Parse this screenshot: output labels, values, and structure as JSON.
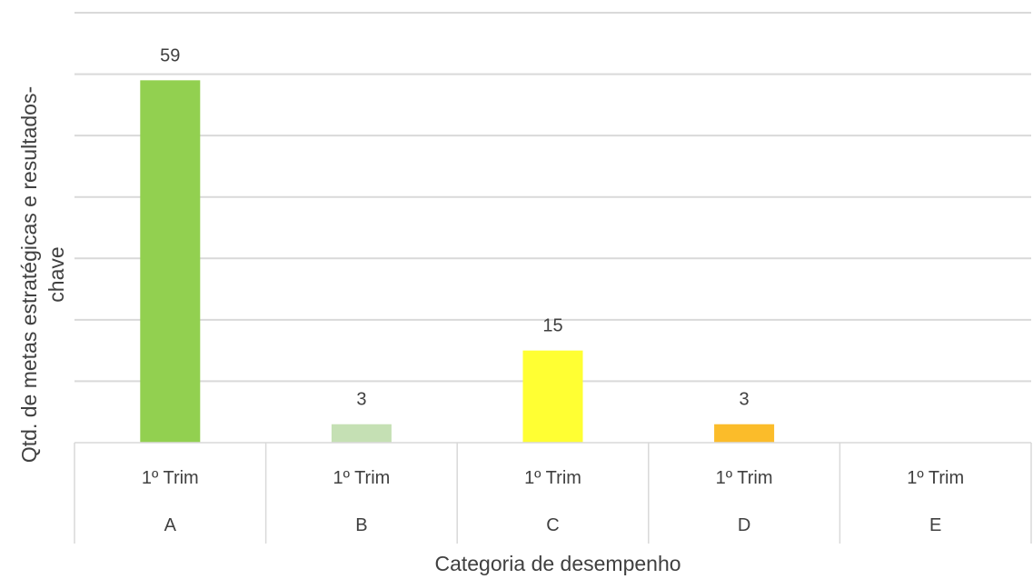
{
  "chart_data": {
    "type": "bar",
    "title": "",
    "xlabel": "Categoria de desempenho",
    "ylabel_lines": [
      "Qtd. de metas estratégicas  e resultados-",
      "chave"
    ],
    "ylim": [
      0,
      70
    ],
    "grid": true,
    "legend": "none",
    "categories": [
      {
        "group": "A",
        "label": "1º Trim",
        "value": 59,
        "color": "#92d050",
        "label_text": "59"
      },
      {
        "group": "B",
        "label": "1º Trim",
        "value": 3,
        "color": "#c5e0b4",
        "label_text": "3"
      },
      {
        "group": "C",
        "label": "1º Trim",
        "value": 15,
        "color": "#ffff33",
        "label_text": "15"
      },
      {
        "group": "D",
        "label": "1º Trim",
        "value": 3,
        "color": "#fbbc2a",
        "label_text": "3"
      },
      {
        "group": "E",
        "label": "1º Trim",
        "value": 0,
        "color": "#ffffff",
        "label_text": ""
      }
    ]
  }
}
